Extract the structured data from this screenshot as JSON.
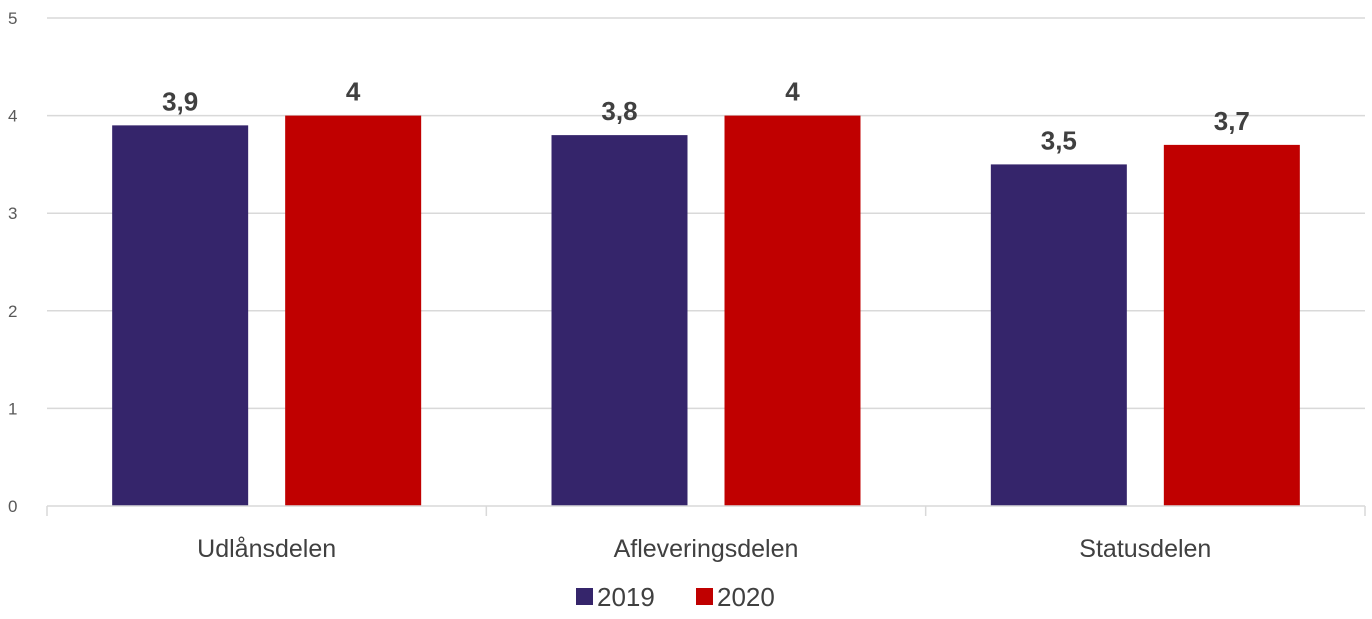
{
  "chart_data": {
    "type": "bar",
    "title": "",
    "xlabel": "",
    "ylabel": "",
    "categories": [
      "Udlånsdelen",
      "Afleveringsdelen",
      "Statusdelen"
    ],
    "series": [
      {
        "name": "2019",
        "color": "#35256b",
        "values": [
          3.9,
          3.8,
          3.5
        ],
        "labels": [
          "3,9",
          "3,8",
          "3,5"
        ]
      },
      {
        "name": "2020",
        "color": "#c00000",
        "values": [
          4,
          4,
          3.7
        ],
        "labels": [
          "4",
          "4",
          "3,7"
        ]
      }
    ],
    "ylim": [
      0,
      5
    ],
    "yticks": [
      0,
      1,
      2,
      3,
      4,
      5
    ],
    "grid": true,
    "legend": "bottom-center"
  }
}
